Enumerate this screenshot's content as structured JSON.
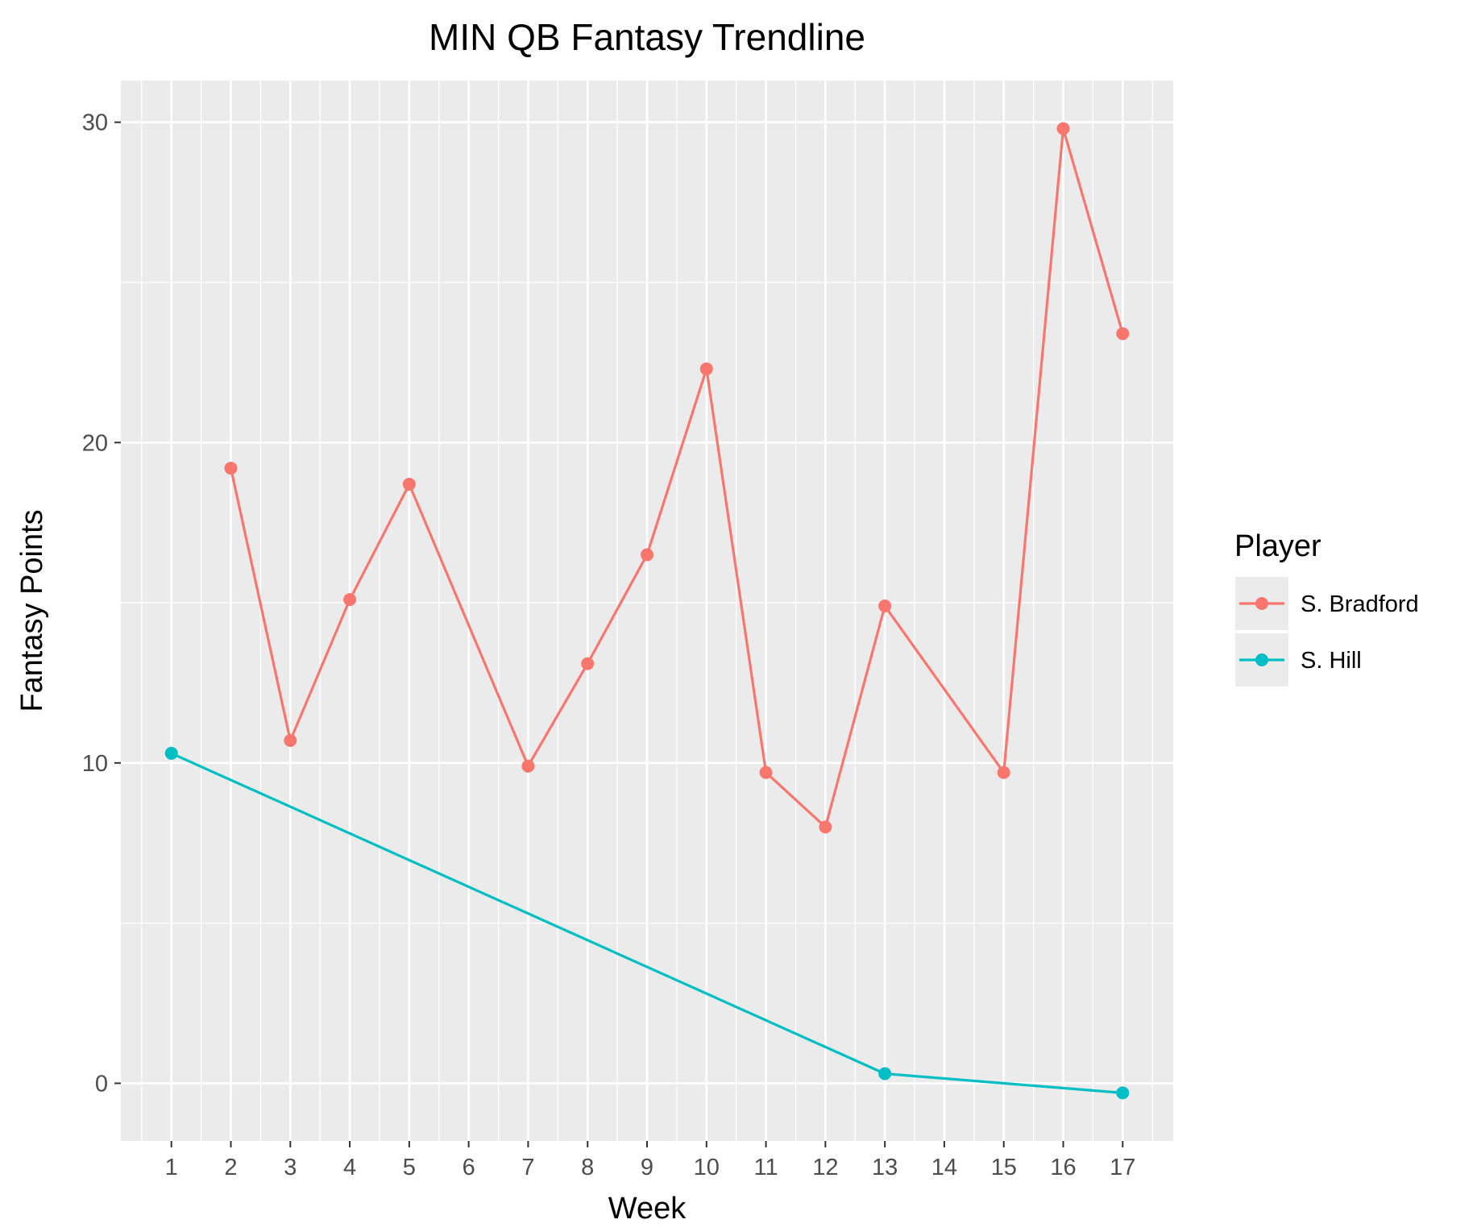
{
  "chart_data": {
    "type": "line",
    "title": "MIN QB Fantasy Trendline",
    "xlabel": "Week",
    "ylabel": "Fantasy Points",
    "x_ticks": [
      1,
      2,
      3,
      4,
      5,
      6,
      7,
      8,
      9,
      10,
      11,
      12,
      13,
      14,
      15,
      16,
      17
    ],
    "y_ticks": [
      0,
      10,
      20,
      30
    ],
    "xlim": [
      0.15,
      17.85
    ],
    "ylim": [
      -1.8,
      31.3
    ],
    "grid": true,
    "legend": {
      "title": "Player",
      "position": "right"
    },
    "series": [
      {
        "name": "S. Bradford",
        "color": "#F8766D",
        "x": [
          2,
          3,
          4,
          5,
          7,
          8,
          9,
          10,
          11,
          12,
          13,
          15,
          16,
          17
        ],
        "y": [
          19.2,
          10.7,
          15.1,
          18.7,
          9.9,
          13.1,
          16.5,
          22.3,
          9.7,
          8.0,
          14.9,
          9.7,
          29.8,
          23.4
        ]
      },
      {
        "name": "S. Hill",
        "color": "#00BFC4",
        "x": [
          1,
          13,
          17
        ],
        "y": [
          10.3,
          0.3,
          -0.3
        ]
      }
    ]
  }
}
